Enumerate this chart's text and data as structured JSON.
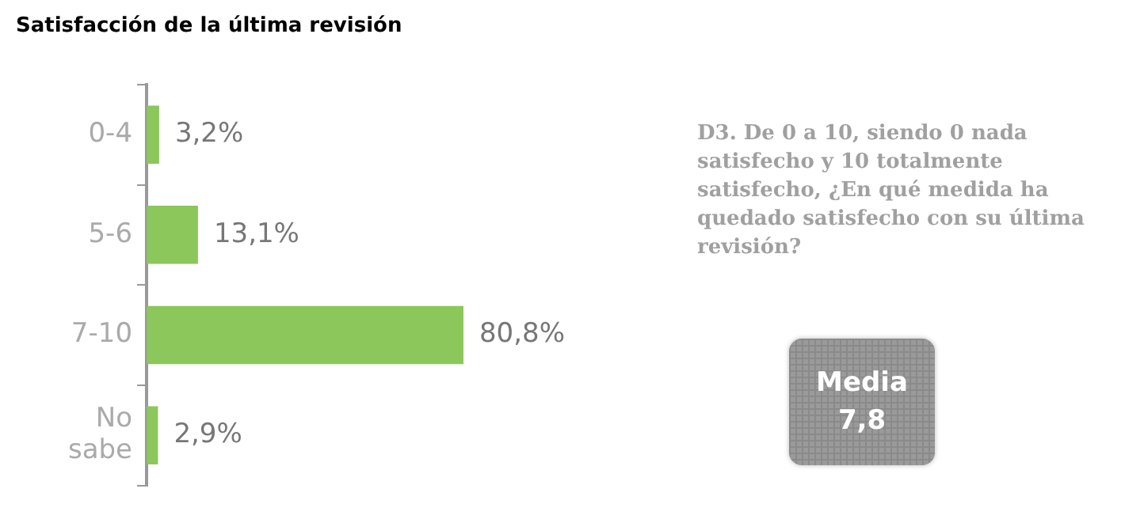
{
  "chart_data": {
    "type": "bar",
    "orientation": "horizontal",
    "title": "Satisfacción de la última revisión",
    "categories": [
      "0-4",
      "5-6",
      "7-10",
      "No sabe"
    ],
    "values": [
      3.2,
      13.1,
      80.8,
      2.9
    ],
    "value_labels": [
      "3,2%",
      "13,1%",
      "80,8%",
      "2,9%"
    ],
    "color": "#8bc75a",
    "legend": false,
    "tick_labels": "y",
    "annotations": [
      "D3.  De 0 a 10, siendo 0 nada satisfecho y 10 totalmente satisfecho, ¿En qué medida ha quedado satisfecho con su última revisión?",
      "Media 7,8"
    ]
  }
}
